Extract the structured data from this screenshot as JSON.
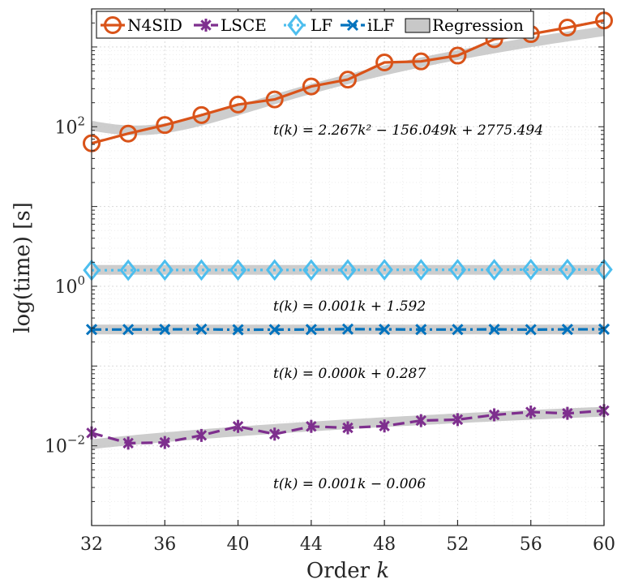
{
  "chart_data": {
    "type": "line",
    "xlabel": "Order k",
    "ylabel": "log(time) [s]",
    "yscale": "log",
    "xlim": [
      32,
      60
    ],
    "ylim": [
      0.001,
      3000
    ],
    "x_ticks": [
      32,
      36,
      40,
      44,
      48,
      52,
      56,
      60
    ],
    "y_ticks": [
      {
        "value": 0.01,
        "base": "10",
        "exp": "−2"
      },
      {
        "value": 1,
        "base": "10",
        "exp": "0"
      },
      {
        "value": 100,
        "base": "10",
        "exp": "2"
      }
    ],
    "grid": true,
    "minor_grid": true,
    "legend_position": "top",
    "x": [
      32,
      34,
      36,
      38,
      40,
      42,
      44,
      46,
      48,
      50,
      52,
      54,
      56,
      58,
      60
    ],
    "series": [
      {
        "name": "N4SID",
        "color": "#D95319",
        "marker": "circle",
        "line": "solid",
        "values": [
          62,
          82,
          105,
          140,
          190,
          220,
          320,
          390,
          640,
          660,
          780,
          1250,
          1450,
          1750,
          2150
        ]
      },
      {
        "name": "LSCE",
        "color": "#7E2F8E",
        "marker": "asterisk",
        "line": "dashed",
        "values": [
          0.0145,
          0.0108,
          0.011,
          0.0135,
          0.0175,
          0.014,
          0.0175,
          0.0168,
          0.0177,
          0.0207,
          0.0213,
          0.0244,
          0.0265,
          0.0255,
          0.0276
        ]
      },
      {
        "name": "LF",
        "color": "#4DBEEE",
        "marker": "diamond",
        "line": "dotted",
        "values": [
          1.59,
          1.59,
          1.6,
          1.6,
          1.6,
          1.6,
          1.6,
          1.6,
          1.61,
          1.61,
          1.61,
          1.61,
          1.62,
          1.62,
          1.62
        ]
      },
      {
        "name": "iLF",
        "color": "#0072BD",
        "marker": "x",
        "line": "dashdot",
        "values": [
          0.287,
          0.287,
          0.288,
          0.289,
          0.285,
          0.286,
          0.287,
          0.29,
          0.288,
          0.287,
          0.287,
          0.288,
          0.286,
          0.288,
          0.289
        ]
      }
    ],
    "regression": {
      "name": "Regression",
      "color": "#C8C8C8",
      "fits": [
        {
          "series": "N4SID",
          "a": 2.267,
          "b": -156.049,
          "c": 2775.494,
          "label": "t(k) = 2.267k² − 156.049k + 2775.494"
        },
        {
          "series": "LF",
          "a": 0,
          "b": 0.001,
          "c": 1.592,
          "label": "t(k) = 0.001k + 1.592"
        },
        {
          "series": "iLF",
          "a": 0,
          "b": 0.0,
          "c": 0.287,
          "label": "t(k) = 0.000k + 0.287"
        },
        {
          "series": "LSCE",
          "a": 0,
          "b": 0.001,
          "c": -0.006,
          "label": "t(k) = 0.001k − 0.006"
        }
      ]
    }
  }
}
